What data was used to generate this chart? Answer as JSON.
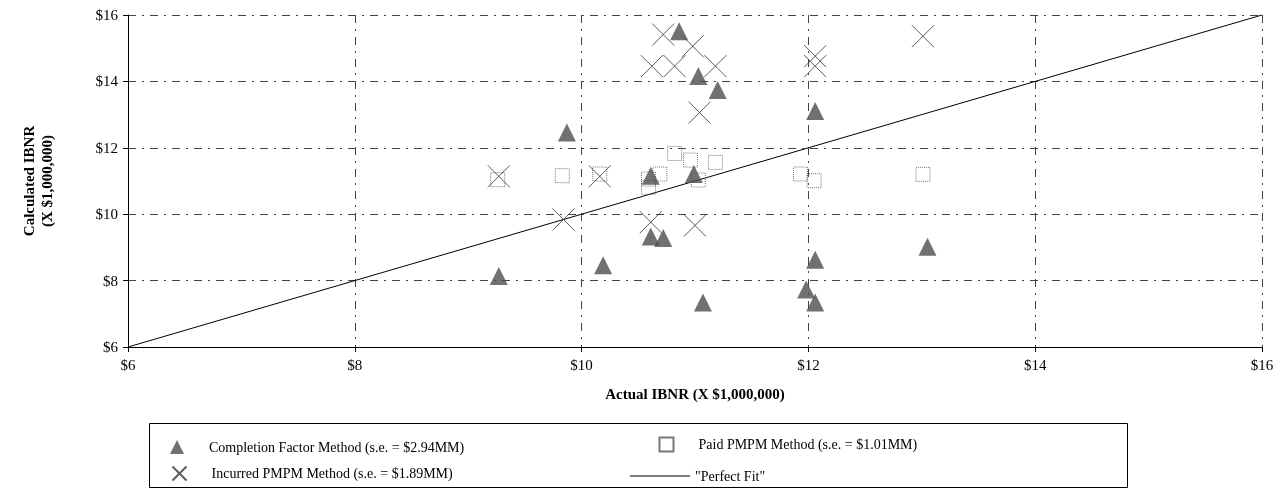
{
  "chart_data": {
    "type": "scatter",
    "xlabel": "Actual IBNR (X $1,000,000)",
    "ylabel": "Calculated IBNR\n(X $1,000,000)",
    "xlim": [
      6,
      16
    ],
    "ylim": [
      6,
      16
    ],
    "xticks": [
      {
        "value": 6,
        "label": "$6"
      },
      {
        "value": 8,
        "label": "$8"
      },
      {
        "value": 10,
        "label": "$10"
      },
      {
        "value": 12,
        "label": "$12"
      },
      {
        "value": 14,
        "label": "$14"
      },
      {
        "value": 16,
        "label": "$16"
      }
    ],
    "yticks": [
      {
        "value": 6,
        "label": "$6"
      },
      {
        "value": 8,
        "label": "$8"
      },
      {
        "value": 10,
        "label": "$10"
      },
      {
        "value": 12,
        "label": "$12"
      },
      {
        "value": 14,
        "label": "$14"
      },
      {
        "value": 16,
        "label": "$16"
      }
    ],
    "grid": true,
    "legend": "bottom",
    "series": [
      {
        "name": "Completion Factor Method (s.e. = $2.94MM)",
        "color": "#4d4d4d",
        "marker": "triangle",
        "x": [
          9.27,
          9.87,
          10.19,
          10.86,
          11.03,
          11.2,
          12.06,
          10.61,
          10.99,
          10.61,
          10.72,
          11.07,
          12.06,
          11.98,
          12.06,
          13.05
        ],
        "values": [
          8.14,
          12.46,
          8.46,
          15.51,
          14.16,
          13.74,
          13.11,
          11.16,
          11.21,
          9.33,
          9.28,
          7.34,
          8.63,
          7.73,
          7.34,
          9.02
        ]
      },
      {
        "name": "Paid PMPM Method (s.e. = $1.01MM)",
        "color": "#555555",
        "marker": "square",
        "x": [
          9.26,
          9.83,
          10.16,
          10.59,
          10.69,
          10.59,
          10.82,
          10.96,
          11.18,
          11.03,
          11.93,
          12.05,
          13.01
        ],
        "values": [
          11.04,
          11.16,
          11.21,
          11.06,
          11.21,
          10.81,
          11.83,
          11.63,
          11.56,
          11.03,
          11.21,
          11.01,
          11.2
        ]
      },
      {
        "name": "Incurred PMPM Method (s.e. = $1.89MM)",
        "color": "#333333",
        "marker": "cross",
        "x": [
          9.27,
          9.84,
          10.16,
          10.72,
          10.98,
          10.62,
          10.82,
          11.18,
          11.04,
          12.06,
          12.06,
          10.61,
          11.0,
          13.01
        ],
        "values": [
          11.14,
          9.84,
          11.14,
          15.41,
          15.06,
          14.46,
          14.46,
          14.46,
          13.06,
          14.76,
          14.46,
          9.76,
          9.66,
          15.36
        ]
      },
      {
        "name": "\"Perfect Fit\"",
        "type": "line",
        "color": "#000000",
        "marker": "none",
        "line_style": "solid",
        "x": [
          6,
          16
        ],
        "values": [
          6,
          16
        ]
      }
    ]
  }
}
